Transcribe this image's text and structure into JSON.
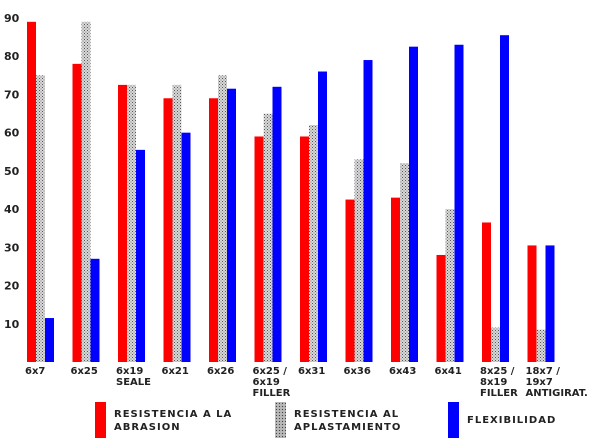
{
  "chart_data": {
    "type": "bar",
    "title": "",
    "xlabel": "",
    "ylabel": "",
    "ylim": [
      0,
      90
    ],
    "yticks": [
      10,
      20,
      30,
      40,
      50,
      60,
      70,
      80,
      90
    ],
    "categories": [
      [
        "6x7"
      ],
      [
        "6x25"
      ],
      [
        "6x19",
        "SEALE"
      ],
      [
        "6x21"
      ],
      [
        "6x26"
      ],
      [
        "6x25 /",
        "6x19",
        "FILLER"
      ],
      [
        "6x31"
      ],
      [
        "6x36"
      ],
      [
        "6x43"
      ],
      [
        "6x41"
      ],
      [
        "8x25 /",
        "8x19",
        "FILLER"
      ],
      [
        "18x7 /",
        "19x7",
        "ANTIGIRAT."
      ]
    ],
    "series": [
      {
        "name": "RESISTENCIA  A LA\nABRASION",
        "color": "#ff0000",
        "values": [
          89,
          78,
          72.5,
          69,
          69,
          59,
          59,
          42.5,
          43,
          28,
          36.5,
          30.5
        ]
      },
      {
        "name": "RESISTENCIA  AL\nAPLASTAMIENTO",
        "color": "#a8a8a8",
        "values": [
          75,
          89,
          72.5,
          72.5,
          75,
          65,
          62,
          53,
          52,
          40,
          9,
          8.5
        ]
      },
      {
        "name": "FLEXIBILIDAD",
        "color": "#0000ff",
        "values": [
          11.5,
          27,
          55.5,
          60,
          71.5,
          72,
          76,
          79,
          82.5,
          83,
          85.5,
          30.5
        ]
      }
    ],
    "grid": false,
    "legend_position": "bottom"
  }
}
